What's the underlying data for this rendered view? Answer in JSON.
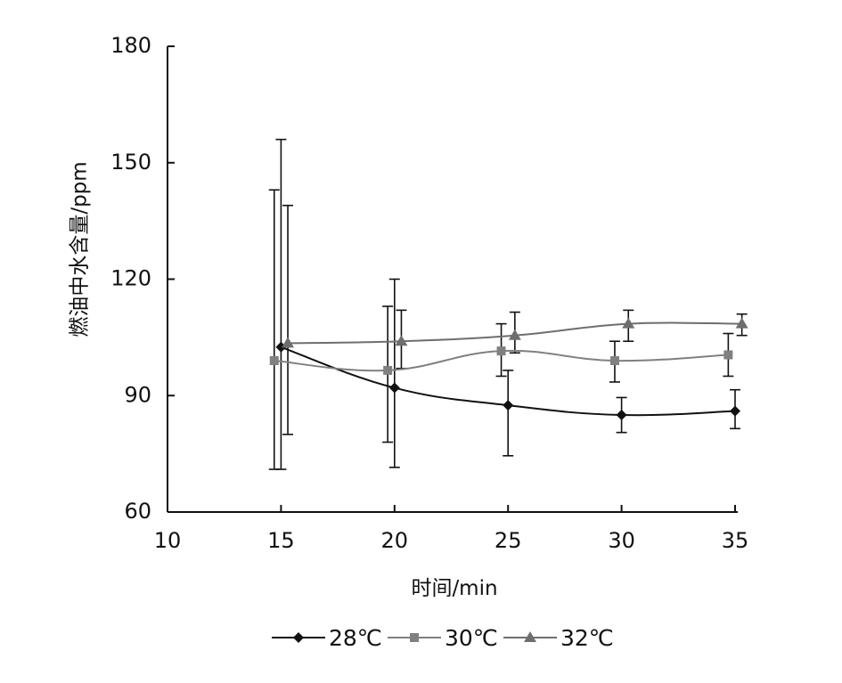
{
  "chart_data": {
    "type": "line",
    "title": "",
    "xlabel": "时间/min",
    "ylabel": "燃油中水含量/ppm",
    "xlim": [
      10,
      35
    ],
    "ylim": [
      60,
      180
    ],
    "x_ticks": [
      "10",
      "15",
      "20",
      "25",
      "30",
      "35"
    ],
    "y_ticks": [
      "60",
      "90",
      "120",
      "150",
      "180"
    ],
    "grid": false,
    "legend_position": "bottom",
    "series": [
      {
        "name": "28℃",
        "marker": "diamond",
        "color": "#111111",
        "points": [
          {
            "x": 15,
            "y": 102.5,
            "err_low": 71,
            "err_high": 156
          },
          {
            "x": 20,
            "y": 92,
            "err_low": 71.5,
            "err_high": 120
          },
          {
            "x": 25,
            "y": 87.5,
            "err_low": 74.5,
            "err_high": 96.5
          },
          {
            "x": 30,
            "y": 85,
            "err_low": 80.5,
            "err_high": 89.5
          },
          {
            "x": 35,
            "y": 86,
            "err_low": 81.5,
            "err_high": 91.5
          }
        ]
      },
      {
        "name": "30℃",
        "marker": "square",
        "color": "#808080",
        "points": [
          {
            "x": 14.7,
            "y": 99,
            "err_low": 71,
            "err_high": 143
          },
          {
            "x": 19.7,
            "y": 96.5,
            "err_low": 78,
            "err_high": 113
          },
          {
            "x": 24.7,
            "y": 101.5,
            "err_low": 95,
            "err_high": 108.5
          },
          {
            "x": 29.7,
            "y": 99,
            "err_low": 93.5,
            "err_high": 104
          },
          {
            "x": 34.7,
            "y": 100.5,
            "err_low": 95,
            "err_high": 106
          }
        ]
      },
      {
        "name": "32℃",
        "marker": "triangle",
        "color": "#6e6e6e",
        "points": [
          {
            "x": 15.3,
            "y": 103.5,
            "err_low": 80,
            "err_high": 139
          },
          {
            "x": 20.3,
            "y": 104,
            "err_low": 97,
            "err_high": 112
          },
          {
            "x": 25.3,
            "y": 105.5,
            "err_low": 101,
            "err_high": 111.5
          },
          {
            "x": 30.3,
            "y": 108.5,
            "err_low": 104,
            "err_high": 112
          },
          {
            "x": 35.3,
            "y": 108.5,
            "err_low": 105.5,
            "err_high": 111
          }
        ]
      }
    ]
  }
}
